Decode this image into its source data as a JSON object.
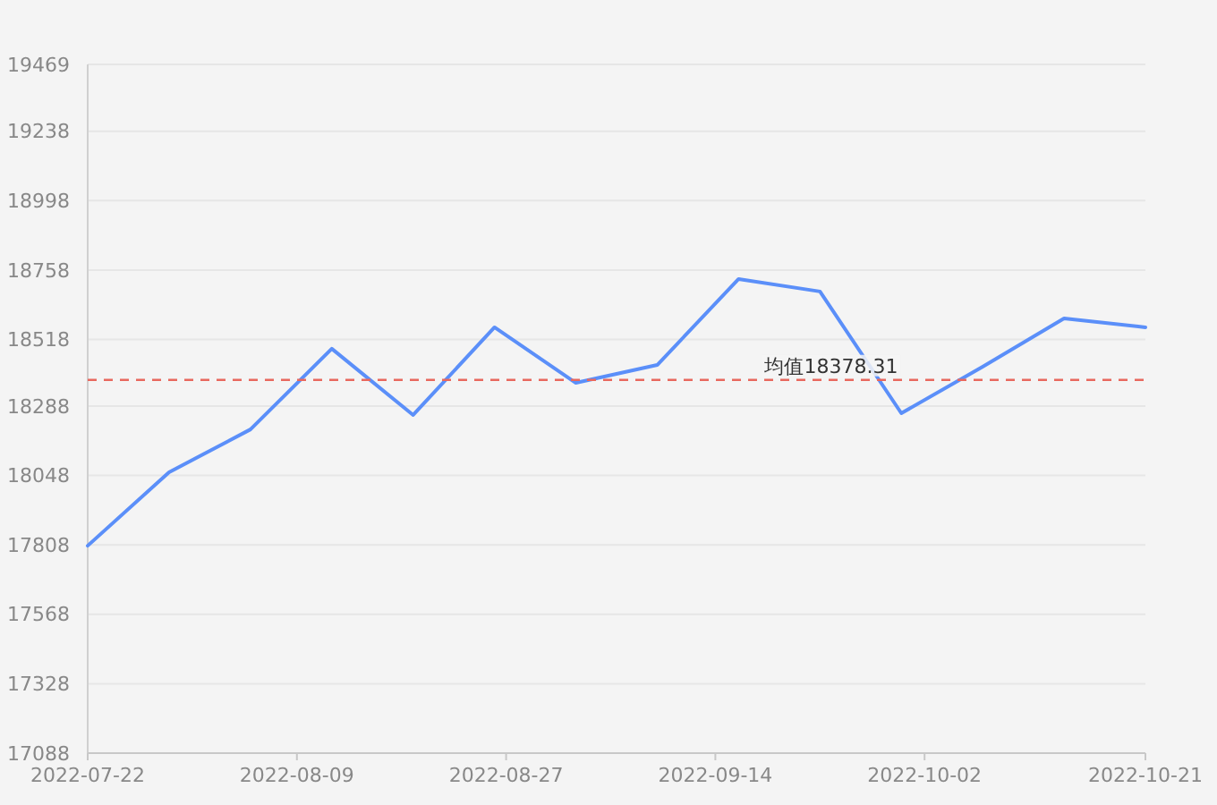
{
  "chart_data": {
    "type": "line",
    "x": [
      "2022-07-22",
      "2022-07-29",
      "2022-08-05",
      "2022-08-12",
      "2022-08-19",
      "2022-08-26",
      "2022-09-02",
      "2022-09-09",
      "2022-09-16",
      "2022-09-23",
      "2022-09-30",
      "2022-10-07",
      "2022-10-14",
      "2022-10-21"
    ],
    "series": [
      {
        "color": "#5b8ff9",
        "values": [
          17805,
          18059,
          18207,
          18486,
          18257,
          18560,
          18368,
          18430,
          18727,
          18684,
          18263,
          18424,
          18591,
          18560
        ]
      }
    ],
    "xlim": [
      "2022-07-22",
      "2022-10-21"
    ],
    "xticks": [
      "2022-07-22",
      "2022-08-09",
      "2022-08-27",
      "2022-09-14",
      "2022-10-02",
      "2022-10-21"
    ],
    "ylim": [
      17088,
      19469
    ],
    "yticks": [
      17088,
      17328,
      17568,
      17808,
      18048,
      18288,
      18518,
      18758,
      18998,
      19238,
      19469
    ],
    "grid": "y",
    "marker": "none",
    "line_style": "solid",
    "ref_lines": [
      {
        "axis": "y",
        "value": 18378.31,
        "label": "均值18378.31",
        "color": "#e8685f",
        "line_style": "dashed"
      }
    ]
  }
}
